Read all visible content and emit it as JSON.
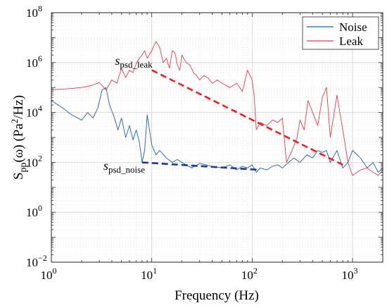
{
  "chart_data": {
    "type": "line",
    "title": "",
    "xlabel": "Frequency (Hz)",
    "ylabel_main": "S",
    "ylabel_sub": "pp",
    "ylabel_mid": "(ω) (Pa",
    "ylabel_sup": "2",
    "ylabel_end": "/Hz)",
    "xscale": "log",
    "yscale": "log",
    "xlim": [
      1,
      2000
    ],
    "ylim": [
      0.01,
      100000000
    ],
    "grid": true,
    "legend_position": "top-right",
    "x_ticks": [
      {
        "value": 1,
        "base": "10",
        "exp": "0"
      },
      {
        "value": 10,
        "base": "10",
        "exp": "1"
      },
      {
        "value": 100,
        "base": "10",
        "exp": "2"
      },
      {
        "value": 1000,
        "base": "10",
        "exp": "3"
      }
    ],
    "y_ticks": [
      {
        "value": 0.01,
        "base": "10",
        "exp": "−2"
      },
      {
        "value": 1,
        "base": "10",
        "exp": "0"
      },
      {
        "value": 100,
        "base": "10",
        "exp": "2"
      },
      {
        "value": 10000,
        "base": "10",
        "exp": "4"
      },
      {
        "value": 1000000,
        "base": "10",
        "exp": "6"
      },
      {
        "value": 100000000,
        "base": "10",
        "exp": "8"
      }
    ],
    "series": [
      {
        "name": "Noise",
        "color": "#1f5fa8",
        "x": [
          1,
          1.3,
          1.6,
          2,
          2.3,
          2.6,
          2.9,
          3.2,
          3.5,
          3.8,
          4.2,
          4.6,
          5,
          5.5,
          6,
          6.5,
          7,
          7.5,
          8,
          8.5,
          9,
          10,
          11,
          12,
          14,
          16,
          18,
          20,
          25,
          30,
          40,
          50,
          60,
          70,
          80,
          90,
          100,
          110,
          120,
          140,
          160,
          180,
          200,
          230,
          260,
          300,
          350,
          400,
          450,
          500,
          550,
          600,
          700,
          800,
          900,
          1000,
          1200,
          1400,
          1600,
          1800,
          2000
        ],
        "y": [
          30000,
          15000,
          8000,
          5000,
          10000,
          6000,
          15000,
          80000,
          100000,
          20000,
          7000,
          2000,
          6000,
          1000,
          3000,
          800,
          2000,
          700,
          100,
          300,
          8000,
          500,
          200,
          300,
          150,
          100,
          130,
          100,
          60,
          90,
          70,
          60,
          80,
          50,
          70,
          60,
          80,
          40,
          60,
          50,
          70,
          80,
          60,
          100,
          150,
          100,
          200,
          150,
          300,
          250,
          300,
          100,
          300,
          60,
          100,
          300,
          150,
          60,
          100,
          40,
          60
        ]
      },
      {
        "name": "Leak",
        "color": "#e03a4e",
        "x": [
          1,
          1.5,
          2,
          2.5,
          3,
          3.5,
          4,
          4.5,
          5,
          5.5,
          6,
          6.5,
          7,
          7.5,
          8,
          8.5,
          9,
          10,
          11,
          12,
          13,
          14,
          15,
          16,
          17,
          18,
          19,
          20,
          22,
          24,
          26,
          28,
          30,
          33,
          36,
          40,
          45,
          50,
          60,
          70,
          80,
          90,
          100,
          105,
          110,
          120,
          140,
          160,
          180,
          200,
          220,
          250,
          280,
          300,
          330,
          360,
          400,
          450,
          500,
          550,
          600,
          700,
          800,
          900,
          1000,
          1200,
          1400,
          1600,
          1800,
          2000
        ],
        "y": [
          80000,
          90000,
          100000,
          120000,
          160000,
          80000,
          200000,
          150000,
          600000,
          250000,
          500000,
          400000,
          900000,
          1500000,
          2000000,
          3000000,
          1500000,
          3000000,
          7000000,
          4000000,
          1000000,
          1500000,
          600000,
          3000000,
          2500000,
          800000,
          500000,
          2000000,
          1000000,
          800000,
          400000,
          300000,
          200000,
          300000,
          250000,
          150000,
          200000,
          150000,
          100000,
          150000,
          70000,
          500000,
          200000,
          40000,
          2000,
          4000,
          3000,
          5000,
          4000,
          6000,
          100,
          300,
          1000,
          5000,
          2000,
          30000,
          10000,
          3000,
          40000,
          100000,
          1000,
          50000,
          2000,
          100,
          30,
          50,
          60,
          40,
          30,
          50
        ]
      }
    ],
    "trends": [
      {
        "name": "s_psd_leak",
        "color": "#e8202a",
        "x": [
          10,
          800
        ],
        "y": [
          500000,
          80
        ]
      },
      {
        "name": "s_psd_noise",
        "color": "#1a3c8c",
        "x": [
          8,
          120
        ],
        "y": [
          100,
          50
        ]
      }
    ],
    "annotations": [
      {
        "target": "s_psd_leak",
        "main": "s",
        "sub": "psd_leak",
        "x": 4.3,
        "y": 800000
      },
      {
        "target": "s_psd_noise",
        "main": "s",
        "sub": "psd_noise",
        "x": 3.3,
        "y": 50
      }
    ]
  }
}
